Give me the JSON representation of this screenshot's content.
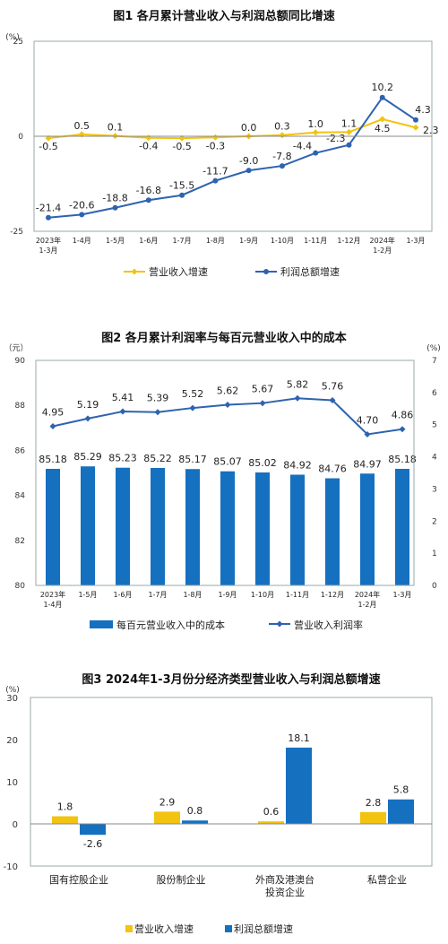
{
  "colors": {
    "yellow": "#f2c30f",
    "blue": "#2e63b0",
    "bar_blue": "#1570c0",
    "axis": "#888888"
  },
  "chart_data": [
    {
      "type": "line",
      "title": "图1  各月累计营业收入与利润总额同比增速",
      "yunit": "(%)",
      "ylim": [
        -25,
        25
      ],
      "yticks": [
        "25",
        "0",
        "-25"
      ],
      "categories": [
        [
          "2023年",
          "1-3月"
        ],
        [
          "1-4月"
        ],
        [
          "1-5月"
        ],
        [
          "1-6月"
        ],
        [
          "1-7月"
        ],
        [
          "1-8月"
        ],
        [
          "1-9月"
        ],
        [
          "1-10月"
        ],
        [
          "1-11月"
        ],
        [
          "1-12月"
        ],
        [
          "2024年",
          "1-2月"
        ],
        [
          "1-3月"
        ]
      ],
      "series": [
        {
          "name": "营业收入增速",
          "values": [
            -0.5,
            0.5,
            0.1,
            -0.4,
            -0.5,
            -0.3,
            0.0,
            0.3,
            1.0,
            1.1,
            4.5,
            2.3
          ],
          "labels": [
            "-0.5",
            "0.5",
            "0.1",
            "-0.4",
            "-0.5",
            "-0.3",
            "0.0",
            "0.3",
            "1.0",
            "1.1",
            "4.5",
            "2.3"
          ]
        },
        {
          "name": "利润总额增速",
          "values": [
            -21.4,
            -20.6,
            -18.8,
            -16.8,
            -15.5,
            -11.7,
            -9.0,
            -7.8,
            -4.4,
            -2.3,
            10.2,
            4.3
          ],
          "labels": [
            "-21.4",
            "-20.6",
            "-18.8",
            "-16.8",
            "-15.5",
            "-11.7",
            "-9.0",
            "-7.8",
            "-4.4",
            "-2.3",
            "10.2",
            "4.3"
          ]
        }
      ],
      "legend": [
        "营业收入增速",
        "利润总额增速"
      ]
    },
    {
      "type": "bar+line",
      "title": "图2  各月累计利润率与每百元营业收入中的成本",
      "left_unit": "（元）",
      "right_unit": "(%)",
      "left_ylim": [
        80,
        90
      ],
      "left_yticks": [
        "90",
        "88",
        "86",
        "84",
        "82",
        "80"
      ],
      "right_ylim": [
        0,
        7
      ],
      "right_yticks": [
        "7",
        "6",
        "5",
        "4",
        "3",
        "2",
        "1",
        "0"
      ],
      "categories": [
        [
          "2023年",
          "1-4月"
        ],
        [
          "1-5月"
        ],
        [
          "1-6月"
        ],
        [
          "1-7月"
        ],
        [
          "1-8月"
        ],
        [
          "1-9月"
        ],
        [
          "1-10月"
        ],
        [
          "1-11月"
        ],
        [
          "1-12月"
        ],
        [
          "2024年",
          "1-2月"
        ],
        [
          "1-3月"
        ]
      ],
      "series": [
        {
          "name": "每百元营业收入中的成本",
          "type": "bar",
          "axis": "left",
          "values": [
            85.18,
            85.29,
            85.23,
            85.22,
            85.17,
            85.07,
            85.02,
            84.92,
            84.76,
            84.97,
            85.18
          ],
          "labels": [
            "85.18",
            "85.29",
            "85.23",
            "85.22",
            "85.17",
            "85.07",
            "85.02",
            "84.92",
            "84.76",
            "84.97",
            "85.18"
          ]
        },
        {
          "name": "营业收入利润率",
          "type": "line",
          "axis": "right",
          "values": [
            4.95,
            5.19,
            5.41,
            5.39,
            5.52,
            5.62,
            5.67,
            5.82,
            5.76,
            4.7,
            4.86
          ],
          "labels": [
            "4.95",
            "5.19",
            "5.41",
            "5.39",
            "5.52",
            "5.62",
            "5.67",
            "5.82",
            "5.76",
            "4.70",
            "4.86"
          ]
        }
      ],
      "legend": [
        "每百元营业收入中的成本",
        "营业收入利润率"
      ]
    },
    {
      "type": "bar",
      "title": "图3  2024年1-3月份分经济类型营业收入与利润总额增速",
      "yunit": "(%)",
      "ylim": [
        -10,
        30
      ],
      "yticks": [
        "30",
        "20",
        "10",
        "0",
        "-10"
      ],
      "categories": [
        [
          "国有控股企业"
        ],
        [
          "股份制企业"
        ],
        [
          "外商及港澳台",
          "投资企业"
        ],
        [
          "私营企业"
        ]
      ],
      "series": [
        {
          "name": "营业收入增速",
          "values": [
            1.8,
            2.9,
            0.6,
            2.8
          ],
          "labels": [
            "1.8",
            "2.9",
            "0.6",
            "2.8"
          ]
        },
        {
          "name": "利润总额增速",
          "values": [
            -2.6,
            0.8,
            18.1,
            5.8
          ],
          "labels": [
            "-2.6",
            "0.8",
            "18.1",
            "5.8"
          ]
        }
      ],
      "legend": [
        "营业收入增速",
        "利润总额增速"
      ]
    }
  ]
}
